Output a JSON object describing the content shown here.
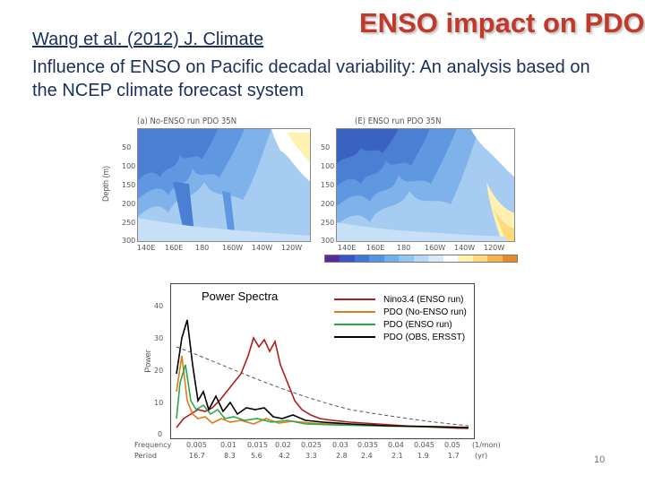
{
  "slide": {
    "citation": "Wang et al. (2012) J. Climate",
    "title": "ENSO impact on PDO",
    "subtitle": "Influence of ENSO on Pacific decadal variability: An analysis based on the NCEP climate forecast system",
    "page_number": "10"
  },
  "panels": [
    {
      "title": "(a) No-ENSO run PDO 35N",
      "ylabel": "Depth (m)",
      "yticks": [
        "50",
        "100",
        "150",
        "200",
        "250",
        "300"
      ],
      "xticks": [
        "140E",
        "160E",
        "180",
        "160W",
        "140W",
        "120W"
      ]
    },
    {
      "title": "(E) ENSO run PDO 35N",
      "yticks": [
        "50",
        "100",
        "150",
        "200",
        "250",
        "300"
      ],
      "xticks": [
        "140E",
        "160E",
        "180",
        "160W",
        "140W",
        "120W"
      ]
    }
  ],
  "colors": {
    "accent_title": "#c0392b",
    "text_navy": "#1a2f5a",
    "colorbar": [
      "#5a2a9a",
      "#3a55c8",
      "#3f78d8",
      "#4f96e6",
      "#6fb0ee",
      "#93c6f4",
      "#b7d9f8",
      "#d9ebfb",
      "#ffffff",
      "#fff2b0",
      "#ffd97a",
      "#f7b44a",
      "#e88a2a"
    ]
  },
  "spectra": {
    "title": "Power Spectra",
    "ylabel": "Power",
    "yticks": [
      "0",
      "10",
      "20",
      "30",
      "40"
    ],
    "freq_label": "Frequency",
    "freq_ticks": [
      "0.005",
      "0.01",
      "0.015",
      "0.02",
      "0.025",
      "0.03",
      "0.035",
      "0.04",
      "0.045",
      "0.05"
    ],
    "freq_unit": "(1/mon)",
    "period_label": "Period",
    "period_ticks": [
      "16.7",
      "8.3",
      "5.6",
      "4.2",
      "3.3",
      "2.8",
      "2.4",
      "2.1",
      "1.9",
      "1.7"
    ],
    "period_unit": "(yr)",
    "legend": [
      {
        "label": "Nino3.4 (ENSO run)",
        "color": "#b01c1c"
      },
      {
        "label": "PDO (No-ENSO run)",
        "color": "#e07b1a"
      },
      {
        "label": "PDO (ENSO run)",
        "color": "#2aa84a"
      },
      {
        "label": "PDO (OBS, ERSST)",
        "color": "#000000"
      }
    ]
  }
}
